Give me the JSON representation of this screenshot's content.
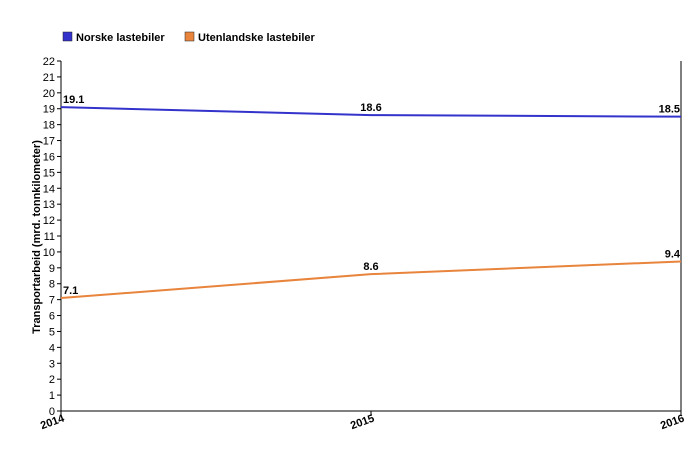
{
  "chart_data": {
    "type": "line",
    "x": [
      "2014",
      "2015",
      "2016"
    ],
    "ylabel": "Transportarbeid (mrd. tonnkilometer)",
    "ylim": [
      0,
      22
    ],
    "yticks": [
      "0",
      "1",
      "2",
      "3",
      "4",
      "5",
      "6",
      "7",
      "8",
      "9",
      "10",
      "11",
      "12",
      "13",
      "14",
      "15",
      "16",
      "17",
      "18",
      "19",
      "20",
      "21",
      "22"
    ],
    "legend_position": "top-left",
    "grid": false,
    "series": [
      {
        "name": "Norske lastebiler",
        "values": [
          19.1,
          18.6,
          18.5
        ],
        "labels": [
          "19.1",
          "18.6",
          "18.5"
        ],
        "color": "#3333cc"
      },
      {
        "name": "Utenlandske lastebiler",
        "values": [
          7.1,
          8.6,
          9.4
        ],
        "labels": [
          "7.1",
          "8.6",
          "9.4"
        ],
        "color": "#e8843c"
      }
    ]
  }
}
